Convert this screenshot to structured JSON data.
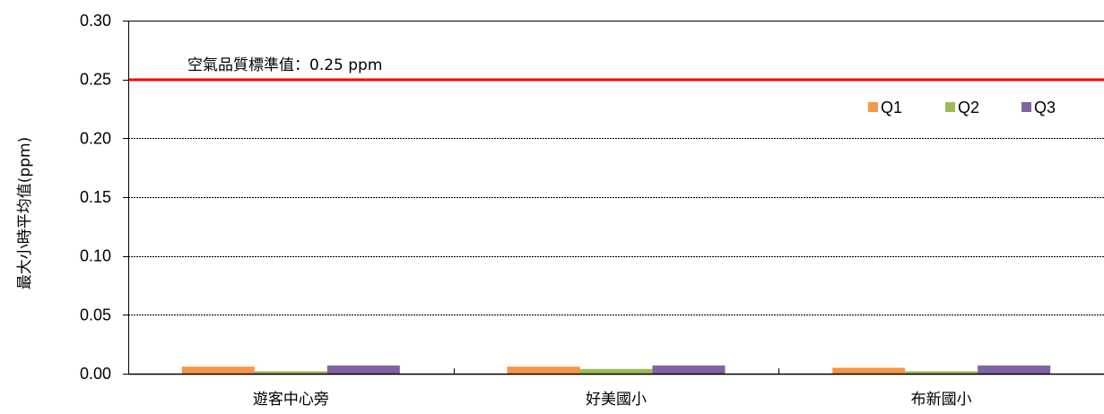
{
  "chart_data": {
    "type": "bar",
    "title": "",
    "xlabel": "",
    "ylabel": "最大小時平均值(ppm)",
    "ylim": [
      0,
      0.3
    ],
    "yticks": [
      "0.00",
      "0.05",
      "0.10",
      "0.15",
      "0.20",
      "0.25",
      "0.30"
    ],
    "grid": true,
    "legend_position": "top-right",
    "categories": [
      "遊客中心旁",
      "好美國小",
      "布新國小"
    ],
    "series": [
      {
        "name": "Q1",
        "color": "#F79646",
        "values": [
          0.006,
          0.006,
          0.005
        ]
      },
      {
        "name": "Q2",
        "color": "#9BBB59",
        "values": [
          0.002,
          0.004,
          0.002
        ]
      },
      {
        "name": "Q3",
        "color": "#8064A2",
        "values": [
          0.007,
          0.007,
          0.007
        ]
      }
    ],
    "reference_line": {
      "value": 0.25,
      "label": "空氣品質標準值：0.25 ppm",
      "color": "#FF0000"
    }
  }
}
